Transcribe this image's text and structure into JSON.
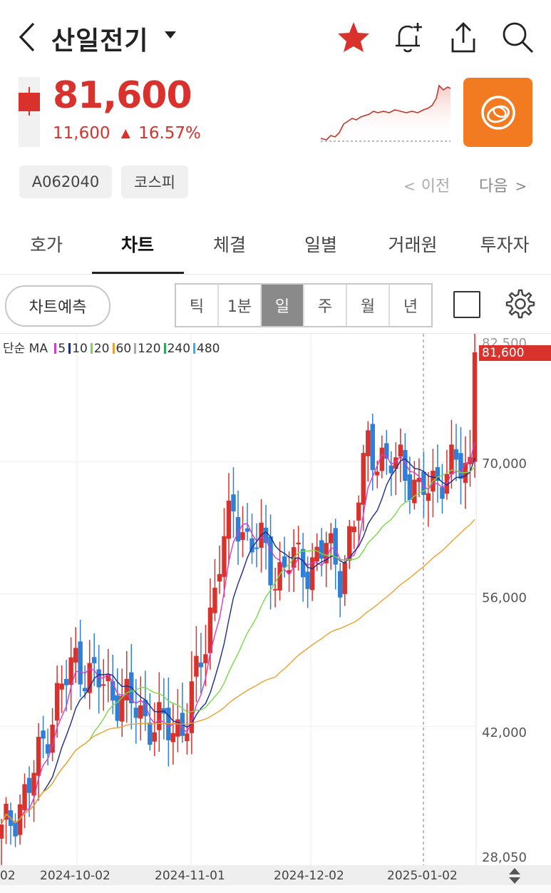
{
  "header": {
    "back_icon": "chevron-left-icon",
    "title": "산일전기",
    "dropdown_icon": "caret-down-icon",
    "icons": [
      "star-icon",
      "bell-plus-icon",
      "share-icon",
      "search-icon"
    ],
    "star_color": "#d9312b"
  },
  "quote": {
    "price": "81,600",
    "change": "11,600",
    "change_arrow": "▲",
    "change_pct": "16.57%",
    "up_color": "#d9312b"
  },
  "tags": [
    "A062040",
    "코스피"
  ],
  "nav": {
    "prev": "이전",
    "next": "다음"
  },
  "tabs": [
    {
      "label": "호가",
      "active": false
    },
    {
      "label": "차트",
      "active": true
    },
    {
      "label": "체결",
      "active": false
    },
    {
      "label": "일별",
      "active": false
    },
    {
      "label": "거래원",
      "active": false
    },
    {
      "label": "투자자",
      "active": false
    }
  ],
  "toolbar": {
    "predict_label": "차트예측",
    "periods": [
      "틱",
      "1분",
      "일",
      "주",
      "월",
      "년"
    ],
    "selected_period": "일"
  },
  "legend": {
    "prefix": "단순 MA",
    "items": [
      {
        "label": "5",
        "color": "#d63cc8"
      },
      {
        "label": "10",
        "color": "#1b2a8c"
      },
      {
        "label": "20",
        "color": "#7ad94a"
      },
      {
        "label": "60",
        "color": "#f0a030"
      },
      {
        "label": "120",
        "color": "#aaaaaa"
      },
      {
        "label": "240",
        "color": "#2aa860"
      },
      {
        "label": "480",
        "color": "#29b6e8"
      }
    ]
  },
  "chart_data": {
    "type": "candlestick",
    "y_ticks": [
      "82,500",
      "70,000",
      "56,000",
      "42,000",
      "28,050"
    ],
    "x_ticks": [
      "02",
      "2024-10-02",
      "2024-11-01",
      "2024-12-02",
      "2025-01-02"
    ],
    "current_price_label": "81,600",
    "ylim": [
      28050,
      82500
    ],
    "up_color": "#d9312b",
    "down_color": "#2f7fd6"
  }
}
